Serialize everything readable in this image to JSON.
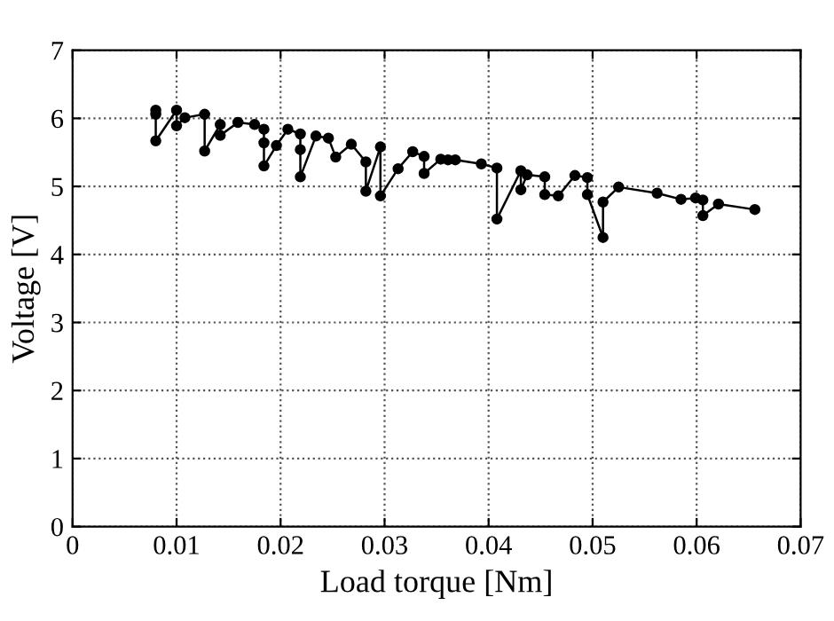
{
  "chart_data": {
    "type": "line",
    "xlabel": "Load torque [Nm]",
    "ylabel": "Voltage [V]",
    "xlim": [
      0,
      0.07
    ],
    "xticks": [
      0,
      0.01,
      0.02,
      0.03,
      0.04,
      0.05,
      0.06,
      0.07
    ],
    "ylim": [
      0,
      7
    ],
    "yticks": [
      0,
      1,
      2,
      3,
      4,
      5,
      6,
      7
    ],
    "grid": true,
    "marker": "circle",
    "line_style": "solid",
    "series": [
      {
        "color": "#000000",
        "x": [
          0.008,
          0.008,
          0.008,
          0.01,
          0.01,
          0.0108,
          0.0127,
          0.0127,
          0.0142,
          0.0142,
          0.0159,
          0.0175,
          0.0184,
          0.0184,
          0.0184,
          0.0196,
          0.0207,
          0.0219,
          0.0219,
          0.0219,
          0.0234,
          0.0246,
          0.0253,
          0.0268,
          0.0282,
          0.0282,
          0.0296,
          0.0296,
          0.0313,
          0.0327,
          0.0338,
          0.0338,
          0.0354,
          0.0361,
          0.0368,
          0.0393,
          0.0408,
          0.0408,
          0.0431,
          0.0431,
          0.0437,
          0.0454,
          0.0454,
          0.0467,
          0.0483,
          0.0495,
          0.0495,
          0.051,
          0.051,
          0.0525,
          0.0562,
          0.0585,
          0.0599,
          0.0606,
          0.0606,
          0.0621,
          0.0656
        ],
        "values": [
          6.12,
          6.06,
          5.67,
          6.12,
          5.89,
          6.01,
          6.06,
          5.52,
          5.91,
          5.75,
          5.94,
          5.91,
          5.84,
          5.64,
          5.3,
          5.6,
          5.84,
          5.77,
          5.54,
          5.14,
          5.74,
          5.71,
          5.43,
          5.62,
          5.36,
          4.93,
          5.58,
          4.86,
          5.26,
          5.51,
          5.44,
          5.19,
          5.4,
          5.39,
          5.39,
          5.33,
          5.27,
          4.52,
          5.23,
          4.95,
          5.17,
          5.14,
          4.88,
          4.86,
          5.16,
          5.13,
          4.88,
          4.25,
          4.77,
          4.99,
          4.9,
          4.81,
          4.83,
          4.8,
          4.57,
          4.74,
          4.66
        ]
      }
    ]
  }
}
